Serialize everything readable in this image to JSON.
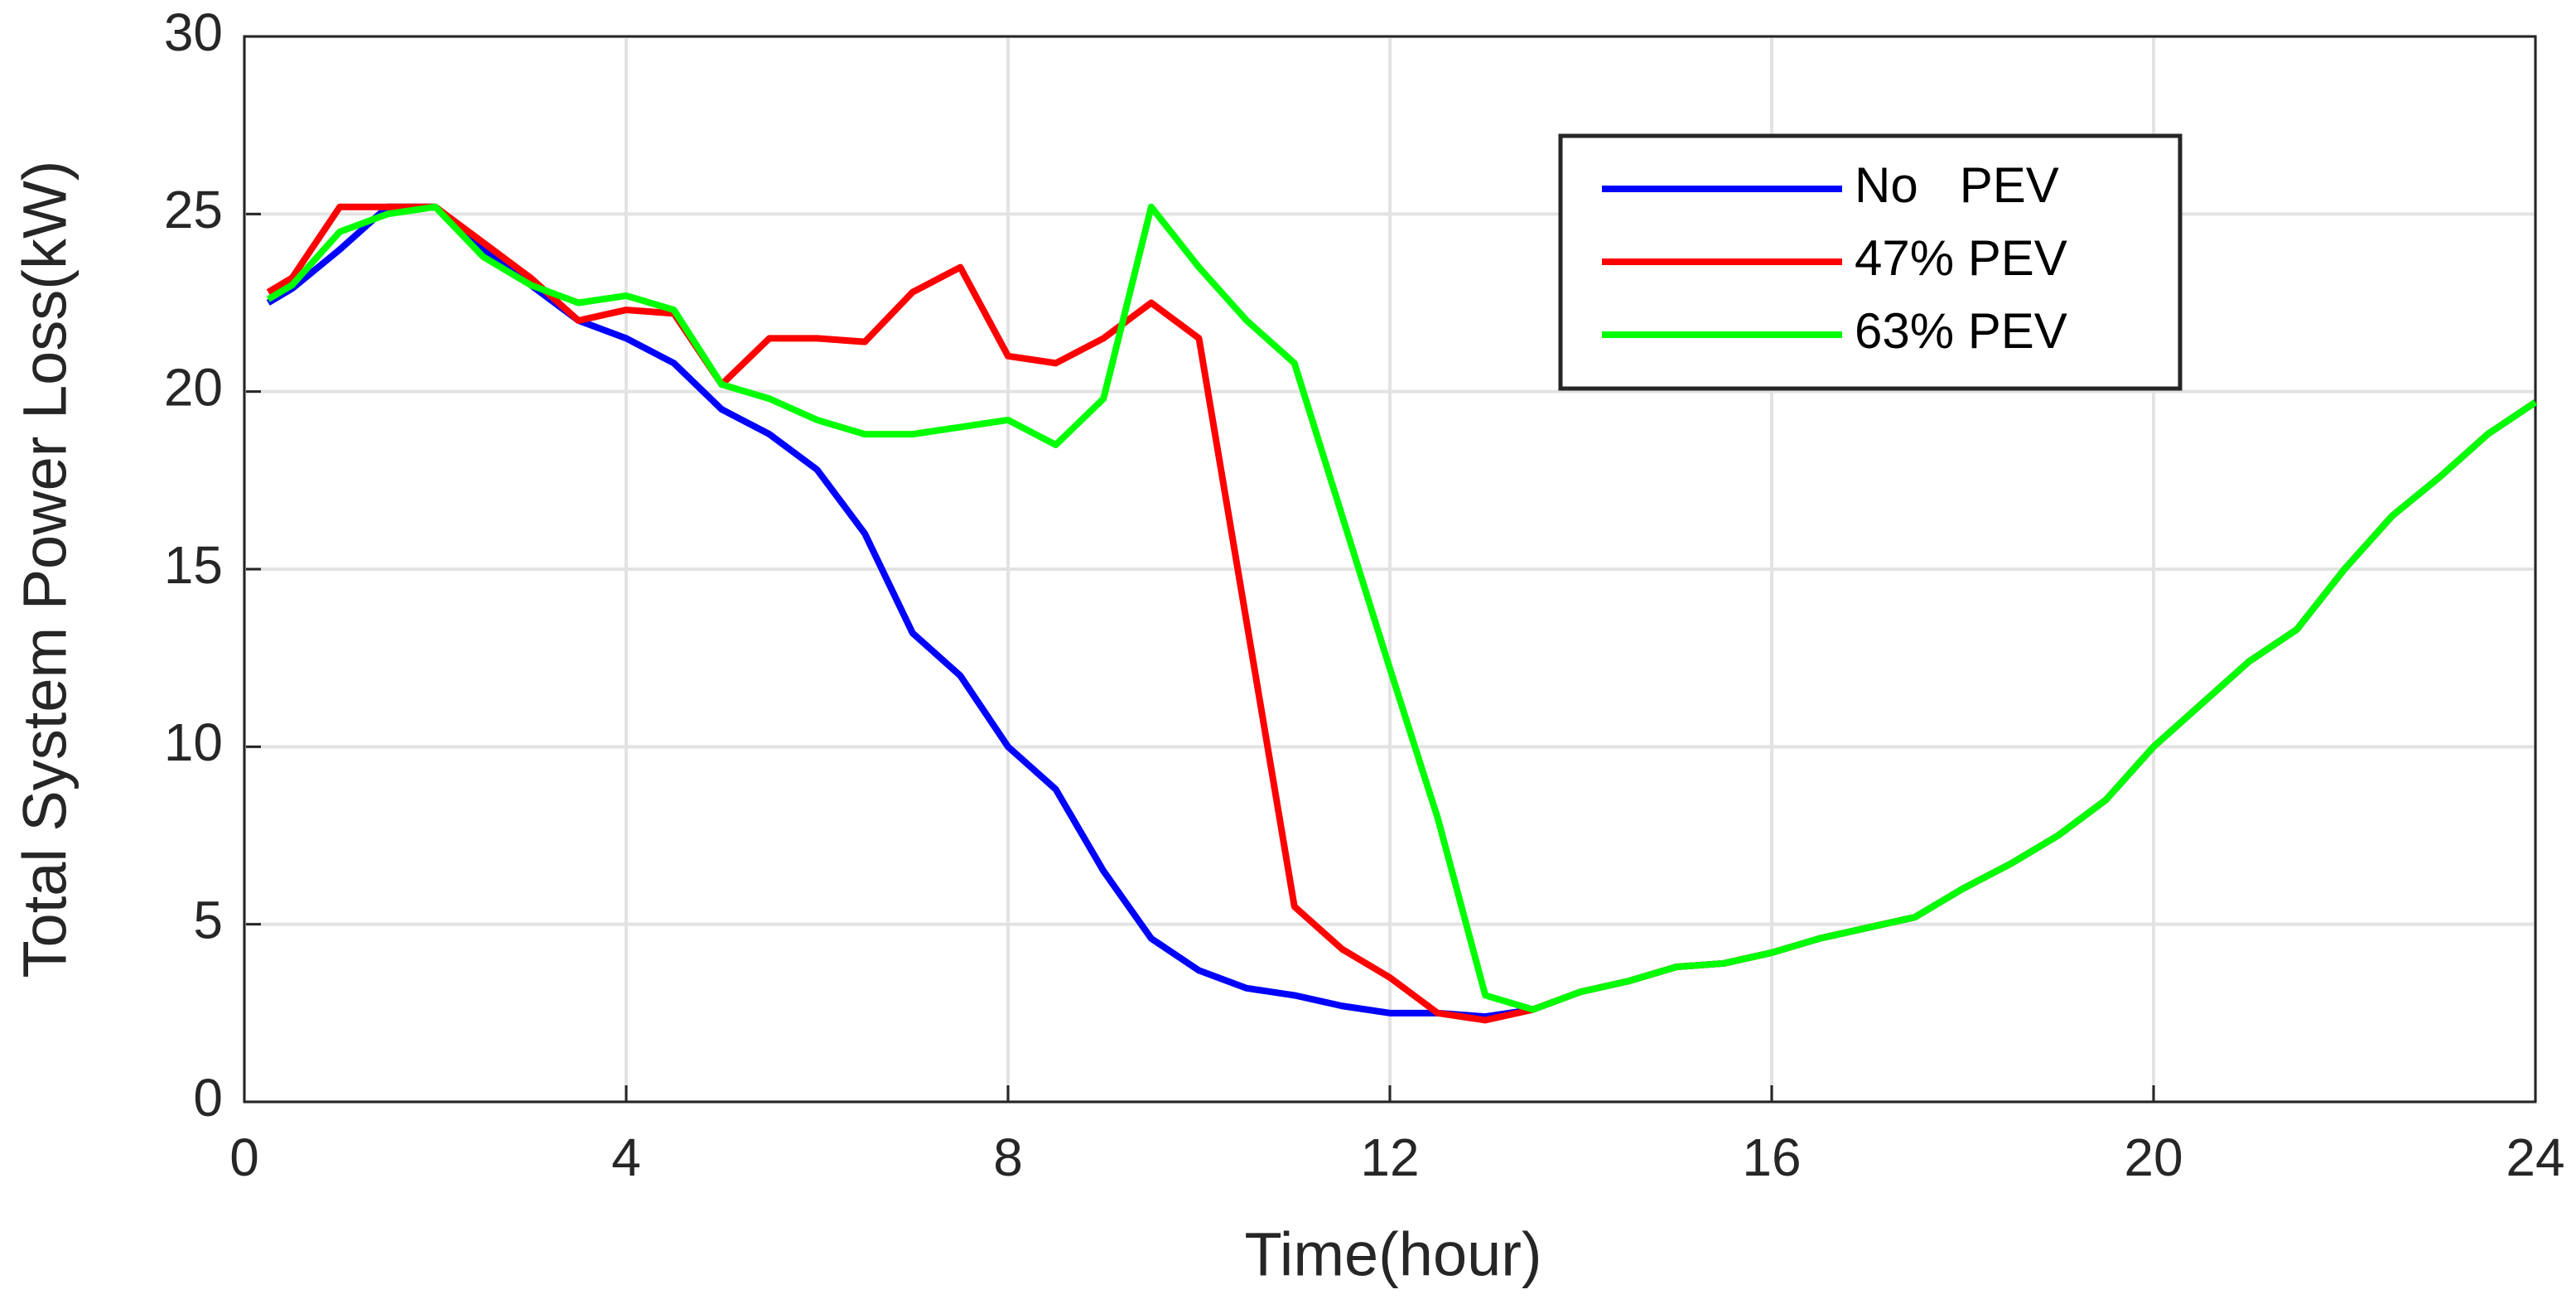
{
  "chart_data": {
    "type": "line",
    "x_label": "Time(hour)",
    "y_label": "Total System Power Loss(kW)",
    "x": [
      0.25,
      0.5,
      1,
      1.5,
      2,
      2.5,
      3,
      3.5,
      4,
      4.5,
      5,
      5.5,
      6,
      6.5,
      7,
      7.5,
      8,
      8.5,
      9,
      9.5,
      10,
      10.5,
      11,
      11.5,
      12,
      12.5,
      13,
      13.5,
      14,
      14.5,
      15,
      15.5,
      16,
      16.5,
      17,
      17.5,
      18,
      18.5,
      19,
      19.5,
      20,
      20.5,
      21,
      21.5,
      22,
      22.5,
      23,
      23.5,
      24
    ],
    "series": [
      {
        "name": "No   PEV",
        "color": "#0000ff",
        "values": [
          22.5,
          22.9,
          24,
          25.2,
          25.2,
          24,
          23,
          22,
          21.5,
          20.8,
          19.5,
          18.8,
          17.8,
          16,
          13.2,
          12,
          10,
          8.8,
          6.5,
          4.6,
          3.7,
          3.2,
          3,
          2.7,
          2.5,
          2.5,
          2.4,
          2.6,
          3.1,
          3.4,
          3.8,
          3.9,
          4.2,
          4.6,
          4.9,
          5.2,
          6,
          6.7,
          7.5,
          8.5,
          10,
          11.2,
          12.4,
          13.3,
          15,
          16.5,
          17.6,
          18.8,
          19.7
        ]
      },
      {
        "name": "47% PEV",
        "color": "#ff0000",
        "values": [
          22.8,
          23.2,
          25.2,
          25.2,
          25.2,
          24.2,
          23.2,
          22,
          22.3,
          22.2,
          20.2,
          21.5,
          21.5,
          21.4,
          22.8,
          23.5,
          21,
          20.8,
          21.5,
          22.5,
          21.5,
          13.5,
          5.5,
          4.3,
          3.5,
          2.5,
          2.3,
          2.6,
          3.1,
          3.4,
          3.8,
          3.9,
          4.2,
          4.6,
          4.9,
          5.2,
          6,
          6.7,
          7.5,
          8.5,
          10,
          11.2,
          12.4,
          13.3,
          15,
          16.5,
          17.6,
          18.8,
          19.7
        ]
      },
      {
        "name": "63% PEV",
        "color": "#00ff00",
        "values": [
          22.6,
          23,
          24.5,
          25,
          25.2,
          23.8,
          23,
          22.5,
          22.7,
          22.3,
          20.2,
          19.8,
          19.2,
          18.8,
          18.8,
          19,
          19.2,
          18.5,
          19.8,
          25.2,
          23.5,
          22,
          20.8,
          16.5,
          12.2,
          8,
          3,
          2.6,
          3.1,
          3.4,
          3.8,
          3.9,
          4.2,
          4.6,
          4.9,
          5.2,
          6,
          6.7,
          7.5,
          8.5,
          10,
          11.2,
          12.4,
          13.3,
          15,
          16.5,
          17.6,
          18.8,
          19.7
        ]
      }
    ],
    "xlim": [
      0,
      24
    ],
    "xticks": [
      0,
      4,
      8,
      12,
      16,
      20,
      24
    ],
    "ylim": [
      0,
      30
    ],
    "yticks": [
      0,
      5,
      10,
      15,
      20,
      25,
      30
    ],
    "grid": true,
    "legend": "upper right"
  }
}
